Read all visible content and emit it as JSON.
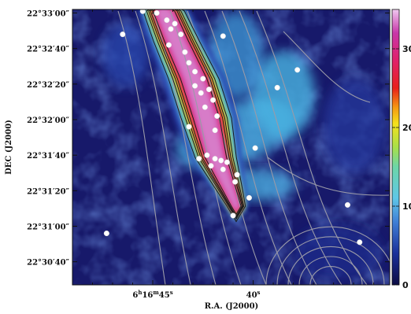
{
  "chart_data": {
    "type": "heatmap",
    "title": "",
    "xlabel": "R.A. (J2000)",
    "ylabel": "DEC (J2000)",
    "x_ticks": [
      {
        "label": "6h16m45s",
        "text_parts": [
          "6",
          "h",
          "16",
          "m",
          "45",
          "s"
        ],
        "value_sec": 45
      },
      {
        "label": "40s",
        "text_parts": [
          "40",
          "s"
        ],
        "value_sec": 40
      }
    ],
    "xlim_sec": [
      49.0,
      33.2
    ],
    "y_ticks": [
      {
        "label": "22°33′00″",
        "value_arcsec": 0
      },
      {
        "label": "22°32′40″",
        "value_arcsec": -20
      },
      {
        "label": "22°32′20″",
        "value_arcsec": -40
      },
      {
        "label": "22°32′00″",
        "value_arcsec": -60
      },
      {
        "label": "22°31′40″",
        "value_arcsec": -80
      },
      {
        "label": "22°31′20″",
        "value_arcsec": -100
      },
      {
        "label": "22°31′00″",
        "value_arcsec": -120
      },
      {
        "label": "22°30′40″",
        "value_arcsec": -140
      }
    ],
    "ylim_arcsec": [
      -153,
      2
    ],
    "colorbar": {
      "min": 0,
      "max": 350,
      "ticks": [
        0,
        100,
        200,
        300
      ],
      "stops": [
        {
          "v": 0,
          "color": "#0c0c44"
        },
        {
          "v": 40,
          "color": "#1a2f9a"
        },
        {
          "v": 80,
          "color": "#3f7fd6"
        },
        {
          "v": 110,
          "color": "#5ec7e8"
        },
        {
          "v": 150,
          "color": "#6dd6a8"
        },
        {
          "v": 175,
          "color": "#a8e048"
        },
        {
          "v": 205,
          "color": "#f5e11a"
        },
        {
          "v": 225,
          "color": "#f59a12"
        },
        {
          "v": 250,
          "color": "#e8201a"
        },
        {
          "v": 285,
          "color": "#e0206a"
        },
        {
          "v": 320,
          "color": "#c836a8"
        },
        {
          "v": 350,
          "color": "#f0c8f0"
        }
      ]
    },
    "filament_levels": [
      {
        "v": 50,
        "color": "#2a46b0",
        "s": 1.6
      },
      {
        "v": 110,
        "color": "#57bfe6",
        "s": 1.3
      },
      {
        "v": 165,
        "color": "#86d866",
        "s": 1.08
      },
      {
        "v": 205,
        "color": "#f2d61c",
        "s": 0.95
      },
      {
        "v": 250,
        "color": "#e52522",
        "s": 0.84
      },
      {
        "v": 300,
        "color": "#d43298",
        "s": 0.68
      },
      {
        "v": 330,
        "color": "#d77cc8",
        "s": 0.5
      }
    ],
    "sources": [
      {
        "ra": 46.5,
        "dec": -12
      },
      {
        "ra": 45.5,
        "dec": 1
      },
      {
        "ra": 44.8,
        "dec": 0
      },
      {
        "ra": 44.3,
        "dec": -4
      },
      {
        "ra": 43.9,
        "dec": -6
      },
      {
        "ra": 44.1,
        "dec": -9
      },
      {
        "ra": 43.6,
        "dec": -12
      },
      {
        "ra": 41.5,
        "dec": -13
      },
      {
        "ra": 44.2,
        "dec": -18
      },
      {
        "ra": 43.4,
        "dec": -22
      },
      {
        "ra": 43.2,
        "dec": -28
      },
      {
        "ra": 42.9,
        "dec": -33
      },
      {
        "ra": 42.5,
        "dec": -37
      },
      {
        "ra": 42.9,
        "dec": -41
      },
      {
        "ra": 42.2,
        "dec": -43
      },
      {
        "ra": 42.6,
        "dec": -45
      },
      {
        "ra": 42.0,
        "dec": -49
      },
      {
        "ra": 42.4,
        "dec": -53
      },
      {
        "ra": 41.8,
        "dec": -58
      },
      {
        "ra": 43.2,
        "dec": -64
      },
      {
        "ra": 41.9,
        "dec": -66
      },
      {
        "ra": 42.7,
        "dec": -82
      },
      {
        "ra": 42.3,
        "dec": -80
      },
      {
        "ra": 41.9,
        "dec": -82
      },
      {
        "ra": 41.6,
        "dec": -83
      },
      {
        "ra": 42.1,
        "dec": -86
      },
      {
        "ra": 41.3,
        "dec": -84
      },
      {
        "ra": 41.5,
        "dec": -88
      },
      {
        "ra": 40.8,
        "dec": -91
      },
      {
        "ra": 40.9,
        "dec": -95
      },
      {
        "ra": 40.2,
        "dec": -104
      },
      {
        "ra": 41.0,
        "dec": -114
      },
      {
        "ra": 39.9,
        "dec": -76
      },
      {
        "ra": 38.8,
        "dec": -42
      },
      {
        "ra": 37.8,
        "dec": -32
      },
      {
        "ra": 35.3,
        "dec": -108
      },
      {
        "ra": 34.7,
        "dec": -129
      },
      {
        "ra": 47.3,
        "dec": -124
      }
    ]
  }
}
